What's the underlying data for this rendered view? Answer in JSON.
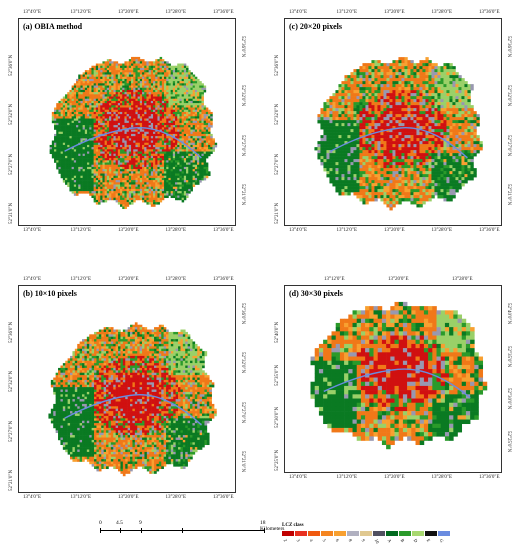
{
  "panels": [
    {
      "id": "a",
      "title": "(a) OBIA method",
      "top_ticks": [
        "13°4'0\"E",
        "13°12'0\"E",
        "13°20'0\"E",
        "13°28'0\"E",
        "13°36'0\"E"
      ],
      "bottom_ticks": [
        "13°4'0\"E",
        "13°12'0\"E",
        "13°20'0\"E",
        "13°28'0\"E",
        "13°36'0\"E"
      ],
      "left_ticks": [
        "52°36'0\"N",
        "52°32'0\"N",
        "52°27'0\"N",
        "52°21'0\"N"
      ],
      "right_ticks": [
        "52°36'0\"N",
        "52°32'0\"N",
        "52°27'0\"N",
        "52°21'0\"N"
      ]
    },
    {
      "id": "c",
      "title": "(c) 20×20 pixels",
      "top_ticks": [
        "13°4'0\"E",
        "13°12'0\"E",
        "13°20'0\"E",
        "13°28'0\"E",
        "13°36'0\"E"
      ],
      "bottom_ticks": [
        "13°4'0\"E",
        "13°12'0\"E",
        "13°20'0\"E",
        "13°28'0\"E",
        "13°36'0\"E"
      ],
      "left_ticks": [
        "52°36'0\"N",
        "52°32'0\"N",
        "52°27'0\"N",
        "52°21'0\"N"
      ],
      "right_ticks": [
        "52°36'0\"N",
        "52°32'0\"N",
        "52°27'0\"N",
        "52°21'0\"N"
      ]
    },
    {
      "id": "b",
      "title": "(b) 10×10 pixels",
      "top_ticks": [
        "13°4'0\"E",
        "13°12'0\"E",
        "13°20'0\"E",
        "13°28'0\"E",
        "13°36'0\"E"
      ],
      "bottom_ticks": [
        "13°4'0\"E",
        "13°12'0\"E",
        "13°20'0\"E",
        "13°28'0\"E",
        "13°36'0\"E"
      ],
      "left_ticks": [
        "52°36'0\"N",
        "52°32'0\"N",
        "52°27'0\"N",
        "52°21'0\"N"
      ],
      "right_ticks": [
        "52°36'0\"N",
        "52°32'0\"N",
        "52°27'0\"N",
        "52°21'0\"N"
      ]
    },
    {
      "id": "d",
      "title": "(d) 30×30 pixels",
      "top_ticks": [
        "13°12'0\"E",
        "13°20'0\"E",
        "13°28'0\"E"
      ],
      "bottom_ticks": [
        "13°4'0\"E",
        "13°12'0\"E",
        "13°20'0\"E",
        "13°28'0\"E",
        "13°36'0\"E"
      ],
      "left_ticks": [
        "52°40'0\"N",
        "52°35'0\"N",
        "52°30'0\"N",
        "52°25'0\"N"
      ],
      "right_ticks": [
        "52°40'0\"N",
        "52°35'0\"N",
        "52°30'0\"N",
        "52°25'0\"N"
      ]
    }
  ],
  "scalebar": {
    "labels": [
      "0",
      "4.5",
      "9",
      "18 Kilometers"
    ]
  },
  "legend": {
    "title": "LCZ class",
    "classes": [
      {
        "label": "2",
        "color": "#c00000"
      },
      {
        "label": "3",
        "color": "#e83020"
      },
      {
        "label": "4",
        "color": "#f05a10"
      },
      {
        "label": "5",
        "color": "#f58520"
      },
      {
        "label": "6",
        "color": "#f8a030"
      },
      {
        "label": "8",
        "color": "#b0b0c0"
      },
      {
        "label": "9",
        "color": "#e0c890"
      },
      {
        "label": "10",
        "color": "#505060"
      },
      {
        "label": "A",
        "color": "#006a1e"
      },
      {
        "label": "B",
        "color": "#2a9a2a"
      },
      {
        "label": "D",
        "color": "#a8d870"
      },
      {
        "label": "E",
        "color": "#101010"
      },
      {
        "label": "G",
        "color": "#6a8ce0"
      }
    ]
  },
  "map_colors": {
    "compact": "#d01010",
    "open": "#f07818",
    "open_light": "#f8a030",
    "industrial": "#9898b0",
    "dense_trees": "#0a7a22",
    "scattered_trees": "#2a9a2a",
    "low_plants": "#9ad068",
    "water": "#6a8ce0"
  }
}
